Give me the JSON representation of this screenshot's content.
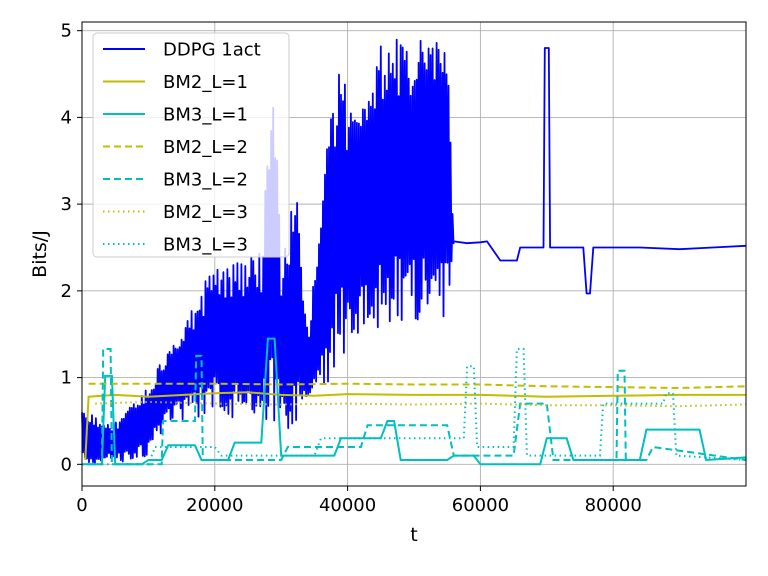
{
  "chart_data": {
    "type": "line",
    "title": "",
    "xlabel": "t",
    "ylabel": "Bits/J",
    "xlim": [
      0,
      100000
    ],
    "ylim": [
      -0.25,
      5.1
    ],
    "xticks": [
      0,
      20000,
      40000,
      60000,
      80000
    ],
    "xtick_labels": [
      "0",
      "20000",
      "40000",
      "60000",
      "80000"
    ],
    "yticks": [
      0,
      1,
      2,
      3,
      4,
      5
    ],
    "ytick_labels": [
      "0",
      "1",
      "2",
      "3",
      "4",
      "5"
    ],
    "grid": true,
    "legend_position": "top-left",
    "series": [
      {
        "name": "DDPG 1act",
        "color": "#0000ff",
        "style": "solid",
        "envelope": [
          {
            "x": 0,
            "lo": 0.0,
            "hi": 0.6
          },
          {
            "x": 5000,
            "lo": 0.0,
            "hi": 0.5
          },
          {
            "x": 10000,
            "lo": 0.1,
            "hi": 0.9
          },
          {
            "x": 13000,
            "lo": 0.5,
            "hi": 1.4
          },
          {
            "x": 17000,
            "lo": 0.5,
            "hi": 1.9
          },
          {
            "x": 20000,
            "lo": 0.6,
            "hi": 2.3
          },
          {
            "x": 24000,
            "lo": 0.5,
            "hi": 2.35
          },
          {
            "x": 27000,
            "lo": 0.5,
            "hi": 2.45
          },
          {
            "x": 29000,
            "lo": 0.4,
            "hi": 4.8
          },
          {
            "x": 30000,
            "lo": 0.4,
            "hi": 2.2
          },
          {
            "x": 32000,
            "lo": 0.3,
            "hi": 3.4
          },
          {
            "x": 34000,
            "lo": 0.7,
            "hi": 1.5
          },
          {
            "x": 37000,
            "lo": 0.9,
            "hi": 3.9
          },
          {
            "x": 38500,
            "lo": 1.2,
            "hi": 4.7
          },
          {
            "x": 40000,
            "lo": 1.3,
            "hi": 4.35
          },
          {
            "x": 44000,
            "lo": 1.5,
            "hi": 4.35
          },
          {
            "x": 45000,
            "lo": 1.6,
            "hi": 4.95
          },
          {
            "x": 49000,
            "lo": 1.6,
            "hi": 5.0
          },
          {
            "x": 52000,
            "lo": 1.7,
            "hi": 5.0
          },
          {
            "x": 55000,
            "lo": 1.6,
            "hi": 4.9
          },
          {
            "x": 56000,
            "lo": 2.57,
            "hi": 2.57
          }
        ],
        "steady": [
          {
            "x": 56000,
            "y": 2.57
          },
          {
            "x": 58000,
            "y": 2.55
          },
          {
            "x": 60000,
            "y": 2.56
          },
          {
            "x": 61000,
            "y": 2.57
          },
          {
            "x": 63000,
            "y": 2.35
          },
          {
            "x": 65500,
            "y": 2.35
          },
          {
            "x": 66000,
            "y": 2.5
          },
          {
            "x": 69500,
            "y": 2.5
          },
          {
            "x": 69700,
            "y": 4.8
          },
          {
            "x": 70300,
            "y": 4.8
          },
          {
            "x": 70500,
            "y": 2.5
          },
          {
            "x": 75500,
            "y": 2.5
          },
          {
            "x": 76000,
            "y": 1.97
          },
          {
            "x": 76500,
            "y": 1.97
          },
          {
            "x": 77000,
            "y": 2.5
          },
          {
            "x": 84000,
            "y": 2.5
          },
          {
            "x": 90000,
            "y": 2.48
          },
          {
            "x": 95000,
            "y": 2.5
          },
          {
            "x": 100000,
            "y": 2.52
          }
        ]
      },
      {
        "name": "BM2_L=1",
        "color": "#bfbf00",
        "style": "solid",
        "x": [
          500,
          1000,
          5000,
          10000,
          20000,
          25000,
          30000,
          35000,
          40000,
          50000,
          60000,
          70000,
          80000,
          90000,
          100000
        ],
        "y": [
          0.05,
          0.78,
          0.8,
          0.78,
          0.82,
          0.83,
          0.8,
          0.79,
          0.81,
          0.8,
          0.8,
          0.78,
          0.79,
          0.8,
          0.8
        ]
      },
      {
        "name": "BM3_L=1",
        "color": "#00bfbf",
        "style": "solid",
        "x": [
          0,
          3000,
          3500,
          4500,
          5000,
          9000,
          10000,
          12000,
          13000,
          17000,
          18000,
          22000,
          23000,
          27000,
          28000,
          29000,
          30000,
          38000,
          39000,
          45000,
          46000,
          47000,
          48000,
          55000,
          56000,
          59000,
          60000,
          69000,
          70000,
          73000,
          74000,
          77000,
          78000,
          84000,
          85000,
          93000,
          94000,
          100000
        ],
        "y": [
          0.0,
          0.0,
          1.02,
          1.02,
          0.0,
          0.0,
          0.05,
          0.05,
          0.22,
          0.22,
          0.05,
          0.05,
          0.25,
          0.25,
          1.45,
          1.45,
          0.1,
          0.1,
          0.3,
          0.3,
          0.5,
          0.5,
          0.05,
          0.05,
          0.1,
          0.1,
          0.0,
          0.0,
          0.3,
          0.3,
          0.05,
          0.05,
          0.05,
          0.05,
          0.4,
          0.4,
          0.05,
          0.08
        ]
      },
      {
        "name": "BM2_L=2",
        "color": "#bfbf00",
        "style": "dashed",
        "x": [
          1000,
          10000,
          20000,
          30000,
          40000,
          50000,
          60000,
          70000,
          80000,
          90000,
          100000
        ],
        "y": [
          0.93,
          0.93,
          0.93,
          0.92,
          0.93,
          0.92,
          0.92,
          0.9,
          0.89,
          0.88,
          0.9
        ]
      },
      {
        "name": "BM3_L=2",
        "color": "#00bfbf",
        "style": "dashed",
        "x": [
          1000,
          3000,
          3200,
          4300,
          4500,
          12000,
          12200,
          17000,
          17200,
          18000,
          18200,
          30000,
          31000,
          42000,
          43000,
          55000,
          56000,
          65000,
          66000,
          70000,
          71000,
          80500,
          80700,
          81700,
          81900,
          85000,
          86000,
          100000
        ],
        "y": [
          0.0,
          0.0,
          1.33,
          1.33,
          0.0,
          0.0,
          0.5,
          0.5,
          1.25,
          1.25,
          0.05,
          0.05,
          0.2,
          0.2,
          0.45,
          0.45,
          0.1,
          0.1,
          0.7,
          0.7,
          0.05,
          0.05,
          1.08,
          1.08,
          0.05,
          0.05,
          0.2,
          0.05
        ]
      },
      {
        "name": "BM2_L=3",
        "color": "#bfbf00",
        "style": "dotted",
        "x": [
          2000,
          10000,
          20000,
          30000,
          40000,
          50000,
          60000,
          70000,
          80000,
          90000,
          100000
        ],
        "y": [
          0.7,
          0.72,
          0.7,
          0.69,
          0.7,
          0.69,
          0.7,
          0.68,
          0.68,
          0.67,
          0.69
        ]
      },
      {
        "name": "BM3_L=3",
        "color": "#00bfbf",
        "style": "dotted",
        "x": [
          0,
          10000,
          11000,
          20000,
          21000,
          35000,
          36000,
          57500,
          58000,
          59000,
          59500,
          65000,
          65500,
          66500,
          67000,
          78000,
          78500,
          87500,
          88000,
          89000,
          89500,
          100000
        ],
        "y": [
          0.0,
          0.0,
          0.2,
          0.2,
          0.1,
          0.1,
          0.3,
          0.3,
          1.13,
          1.13,
          0.2,
          0.2,
          1.33,
          1.33,
          0.1,
          0.1,
          0.7,
          0.7,
          0.82,
          0.82,
          0.1,
          0.05
        ]
      }
    ]
  }
}
